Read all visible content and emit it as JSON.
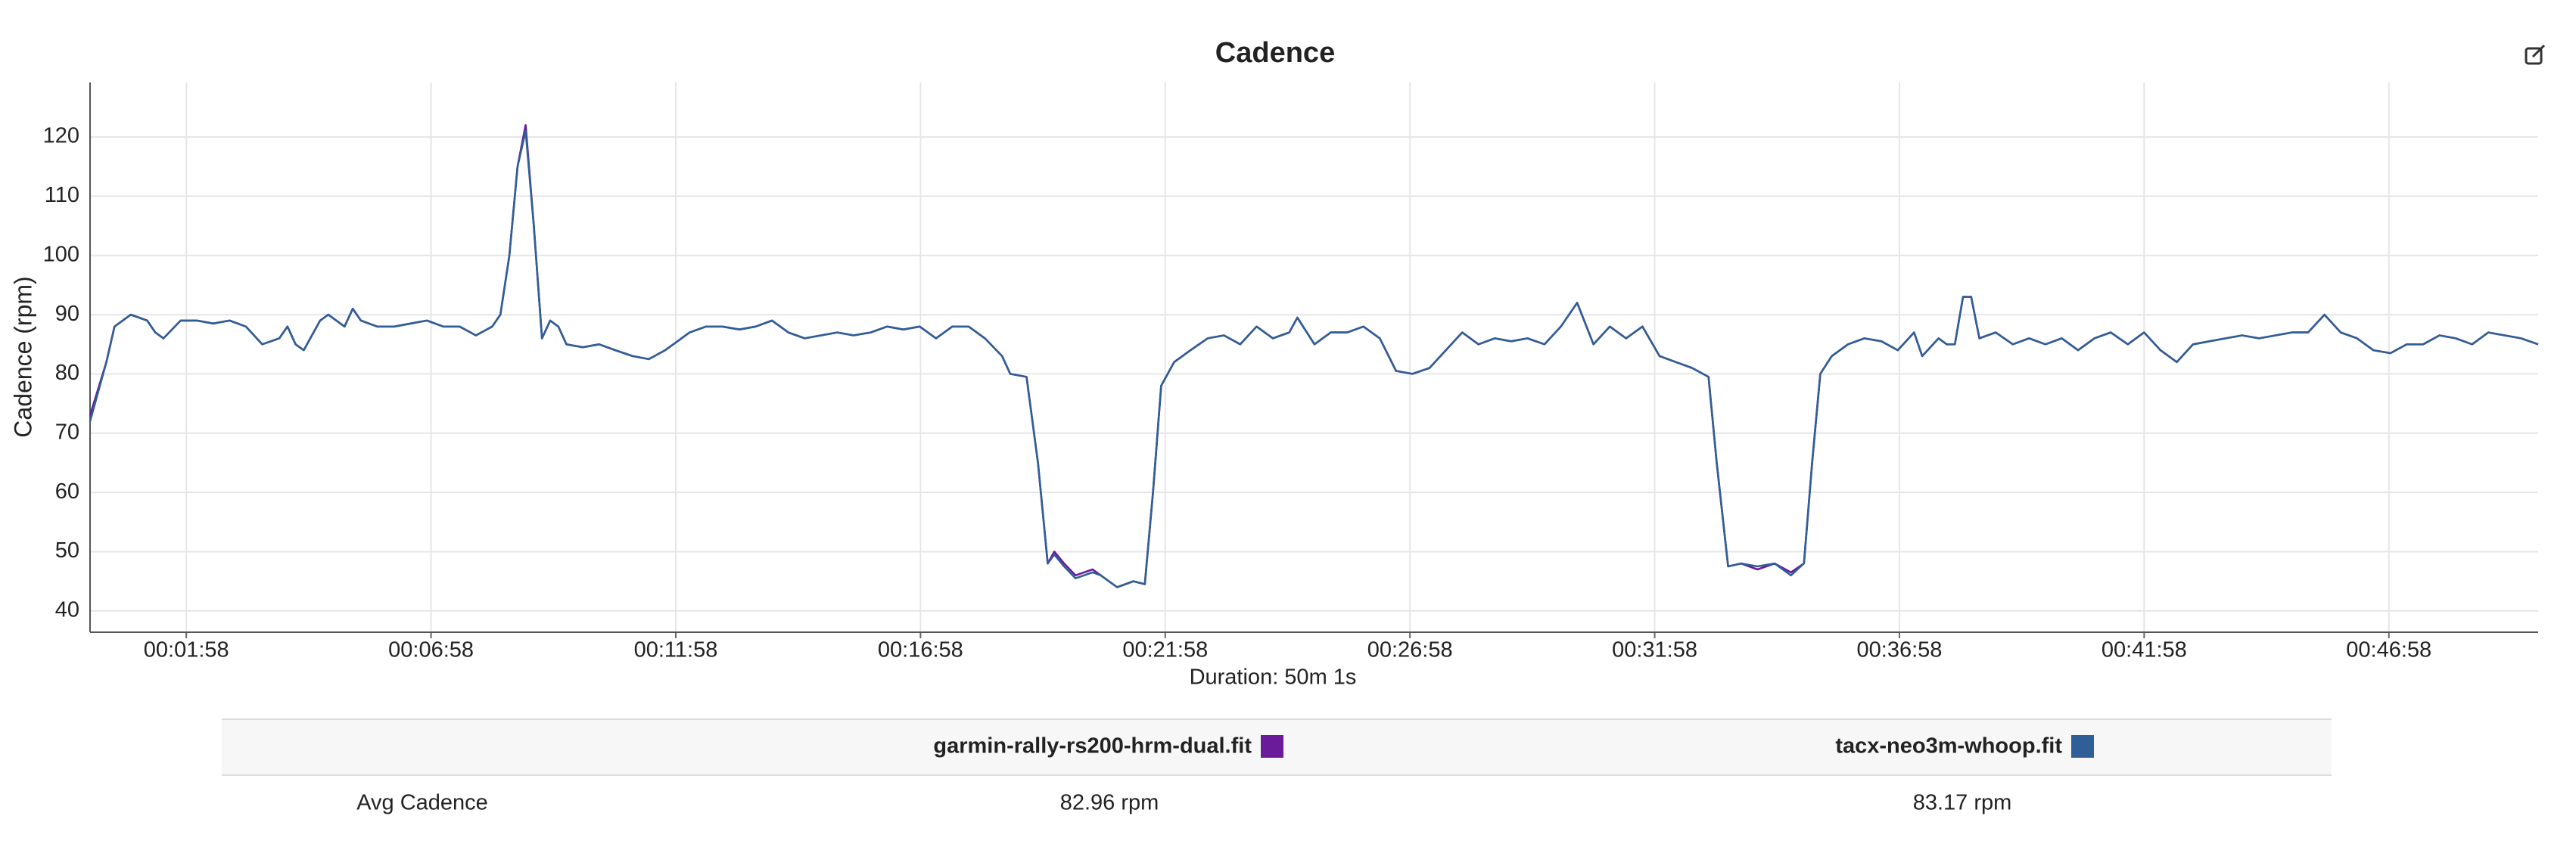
{
  "chart_data": {
    "type": "line",
    "title": "Cadence",
    "x_label": "Duration: 50m 1s",
    "y_label": "Cadence (rpm)",
    "x": [
      0,
      20,
      30,
      50,
      70,
      80,
      90,
      111,
      131,
      151,
      171,
      191,
      211,
      232,
      242,
      252,
      262,
      282,
      292,
      312,
      322,
      332,
      352,
      373,
      393,
      413,
      433,
      453,
      473,
      493,
      503,
      514,
      524,
      534,
      544,
      554,
      564,
      574,
      584,
      604,
      624,
      644,
      665,
      685,
      705,
      715,
      735,
      755,
      775,
      796,
      816,
      836,
      856,
      876,
      896,
      916,
      936,
      957,
      977,
      997,
      1017,
      1037,
      1057,
      1077,
      1097,
      1118,
      1128,
      1148,
      1162,
      1174,
      1182,
      1194,
      1208,
      1229,
      1239,
      1259,
      1279,
      1293,
      1303,
      1313,
      1329,
      1349,
      1370,
      1390,
      1410,
      1430,
      1450,
      1470,
      1480,
      1501,
      1521,
      1541,
      1561,
      1581,
      1601,
      1621,
      1642,
      1662,
      1682,
      1702,
      1722,
      1742,
      1762,
      1783,
      1803,
      1823,
      1843,
      1863,
      1883,
      1903,
      1924,
      1944,
      1964,
      1984,
      1994,
      2008,
      2024,
      2044,
      2065,
      2085,
      2101,
      2111,
      2121,
      2135,
      2155,
      2175,
      2196,
      2216,
      2236,
      2246,
      2266,
      2276,
      2286,
      2296,
      2306,
      2316,
      2336,
      2357,
      2377,
      2397,
      2417,
      2437,
      2457,
      2477,
      2498,
      2518,
      2538,
      2558,
      2578,
      2598,
      2618,
      2638,
      2659,
      2679,
      2699,
      2719,
      2739,
      2759,
      2779,
      2799,
      2820,
      2840,
      2860,
      2880,
      2900,
      2920,
      2940,
      2960,
      2980,
      3001
    ],
    "series": [
      {
        "name": "garmin-rally-rs200-hrm-dual.fit",
        "color": "#6a1b9a",
        "values": [
          73,
          82,
          88,
          90,
          89,
          87,
          86,
          89,
          89,
          88.5,
          89,
          88,
          85,
          86,
          88,
          85,
          84,
          89,
          90,
          88,
          91,
          89,
          88,
          88,
          88.5,
          89,
          88,
          88,
          86.5,
          88,
          90,
          100,
          115,
          122,
          105,
          86,
          89,
          88,
          85,
          84.5,
          85,
          84,
          83,
          82.5,
          84,
          85,
          87,
          88,
          88,
          87.5,
          88,
          89,
          87,
          86,
          86.5,
          87,
          86.5,
          87,
          88,
          87.5,
          88,
          86,
          88,
          88,
          86,
          83,
          80,
          79.5,
          65,
          48,
          50,
          48,
          46,
          47,
          46,
          44,
          45,
          44.5,
          60,
          78,
          82,
          84,
          86,
          86.5,
          85,
          88,
          86,
          87,
          89.5,
          85,
          87,
          87,
          88,
          86,
          80.5,
          80,
          81,
          84,
          87,
          85,
          86,
          85.5,
          86,
          85,
          88,
          92,
          85,
          88,
          86,
          88,
          83,
          82,
          81,
          79.5,
          65,
          47.5,
          48,
          47,
          48,
          46.5,
          48,
          65,
          80,
          83,
          85,
          86,
          85.5,
          84,
          87,
          83,
          86,
          85,
          85,
          93,
          93,
          86,
          87,
          85,
          86,
          85,
          86,
          84,
          86,
          87,
          85,
          87,
          84,
          82,
          85,
          85.5,
          86,
          86.5,
          86,
          86.5,
          87,
          87,
          90,
          87,
          86,
          84,
          83.5,
          85,
          85,
          86.5,
          86,
          85,
          87,
          86.5,
          86,
          85
        ]
      },
      {
        "name": "tacx-neo3m-whoop.fit",
        "color": "#2f5f96",
        "values": [
          72,
          82,
          88,
          90,
          89,
          87,
          86,
          89,
          89,
          88.5,
          89,
          88,
          85,
          86,
          88,
          85,
          84,
          89,
          90,
          88,
          91,
          89,
          88,
          88,
          88.5,
          89,
          88,
          88,
          86.5,
          88,
          90,
          100,
          115,
          121,
          105,
          86,
          89,
          88,
          85,
          84.5,
          85,
          84,
          83,
          82.5,
          84,
          85,
          87,
          88,
          88,
          87.5,
          88,
          89,
          87,
          86,
          86.5,
          87,
          86.5,
          87,
          88,
          87.5,
          88,
          86,
          88,
          88,
          86,
          83,
          80,
          79.5,
          65,
          48,
          49.5,
          47.5,
          45.5,
          46.5,
          46,
          44,
          45,
          44.5,
          60,
          78,
          82,
          84,
          86,
          86.5,
          85,
          88,
          86,
          87,
          89.5,
          85,
          87,
          87,
          88,
          86,
          80.5,
          80,
          81,
          84,
          87,
          85,
          86,
          85.5,
          86,
          85,
          88,
          92,
          85,
          88,
          86,
          88,
          83,
          82,
          81,
          79.5,
          65,
          47.5,
          48,
          47.5,
          48,
          46,
          48,
          65,
          80,
          83,
          85,
          86,
          85.5,
          84,
          87,
          83,
          86,
          85,
          85,
          93,
          93,
          86,
          87,
          85,
          86,
          85,
          86,
          84,
          86,
          87,
          85,
          87,
          84,
          82,
          85,
          85.5,
          86,
          86.5,
          86,
          86.5,
          87,
          87,
          90,
          87,
          86,
          84,
          83.5,
          85,
          85,
          86.5,
          86,
          85,
          87,
          86.5,
          86,
          85
        ]
      }
    ],
    "xlim": [
      0,
      3001
    ],
    "ylim": [
      36.4,
      129.2
    ],
    "xticks": [
      {
        "value": 118,
        "label": "00:01:58"
      },
      {
        "value": 418,
        "label": "00:06:58"
      },
      {
        "value": 718,
        "label": "00:11:58"
      },
      {
        "value": 1018,
        "label": "00:16:58"
      },
      {
        "value": 1318,
        "label": "00:21:58"
      },
      {
        "value": 1618,
        "label": "00:26:58"
      },
      {
        "value": 1918,
        "label": "00:31:58"
      },
      {
        "value": 2218,
        "label": "00:36:58"
      },
      {
        "value": 2518,
        "label": "00:41:58"
      },
      {
        "value": 2818,
        "label": "00:46:58"
      }
    ],
    "yticks": [
      40,
      50,
      60,
      70,
      80,
      90,
      100,
      110,
      120
    ],
    "grid": true
  },
  "table": {
    "rows": [
      [
        "Avg Cadence",
        "82.96 rpm",
        "83.17 rpm"
      ]
    ]
  }
}
